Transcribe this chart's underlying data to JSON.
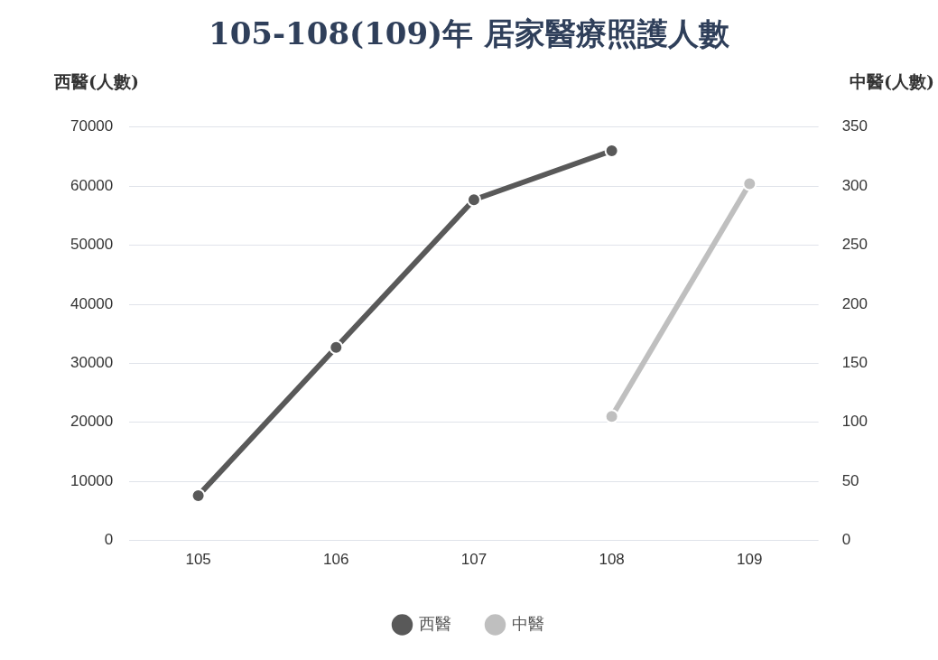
{
  "chart_data": {
    "type": "line",
    "title": "105-108(109)年 居家醫療照護人數",
    "ylabel": "西醫(人數)",
    "y2label": "中醫(人數)",
    "categories": [
      "105",
      "106",
      "107",
      "108",
      "109"
    ],
    "series": [
      {
        "name": "西醫",
        "color": "#595959",
        "values": [
          7600,
          32700,
          57700,
          66000,
          null
        ]
      },
      {
        "name": "中醫",
        "color": "#bfbfbf",
        "axis": "y2",
        "values": [
          null,
          null,
          null,
          105,
          302
        ]
      }
    ],
    "ylim": [
      0,
      70000
    ],
    "yticks": [
      0,
      10000,
      20000,
      30000,
      40000,
      50000,
      60000,
      70000
    ],
    "y2lim": [
      0,
      350
    ],
    "y2ticks": [
      0,
      50,
      100,
      150,
      200,
      250,
      300,
      350
    ],
    "grid": "y",
    "legend": "bottom",
    "marker": "circle",
    "line_style": "solid"
  }
}
